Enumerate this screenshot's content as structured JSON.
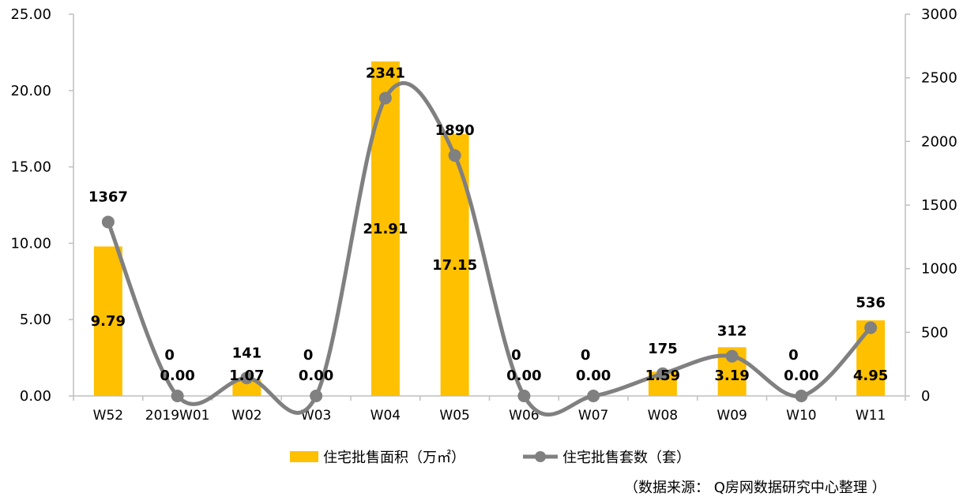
{
  "chart_data": {
    "type": "bar+line",
    "categories": [
      "W52",
      "2019W01",
      "W02",
      "W03",
      "W04",
      "W05",
      "W06",
      "W07",
      "W08",
      "W09",
      "W10",
      "W11"
    ],
    "series": [
      {
        "name": "住宅批售面积（万㎡）",
        "type": "bar",
        "axis": "left",
        "color": "#FFC000",
        "values": [
          9.79,
          0.0,
          1.07,
          0.0,
          21.91,
          17.15,
          0.0,
          0.0,
          1.59,
          3.19,
          0.0,
          4.95
        ],
        "labels": [
          "9.79",
          "0.00",
          "1.07",
          "0.00",
          "21.91",
          "17.15",
          "0.00",
          "0.00",
          "1.59",
          "3.19",
          "0.00",
          "4.95"
        ]
      },
      {
        "name": "住宅批售套数（套）",
        "type": "line",
        "smooth": true,
        "axis": "right",
        "color": "#808080",
        "values": [
          1367,
          0,
          141,
          0,
          2341,
          1890,
          0,
          0,
          175,
          312,
          0,
          536
        ],
        "labels": [
          "1367",
          "0",
          "141",
          "0",
          "2341",
          "1890",
          "0",
          "0",
          "175",
          "312",
          "0",
          "536"
        ]
      }
    ],
    "y_left": {
      "min": 0,
      "max": 25,
      "ticks": [
        "0.00",
        "5.00",
        "10.00",
        "15.00",
        "20.00",
        "25.00"
      ]
    },
    "y_right": {
      "min": 0,
      "max": 3000,
      "ticks": [
        "0",
        "500",
        "1000",
        "1500",
        "2000",
        "2500",
        "3000"
      ]
    },
    "legend_position": "bottom",
    "grid": false,
    "source_note": "（数据来源： Q房网数据研究中心整理 ）"
  }
}
